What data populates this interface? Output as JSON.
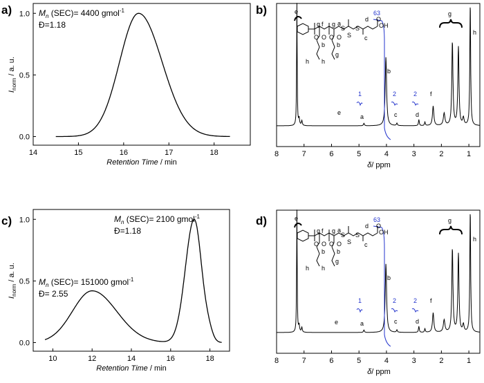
{
  "chart_data": [
    {
      "type": "line",
      "panel_label": "a)",
      "xlabel_italic": "Retention Time",
      "xlabel_unit": " / min",
      "ylabel": "I",
      "ylabel_sub": "norm",
      "ylabel_unit": " / a. u.",
      "xlim": [
        14,
        18.8
      ],
      "ylim": [
        -0.07,
        1.08
      ],
      "xticks": [
        "14",
        "15",
        "16",
        "17",
        "18"
      ],
      "yticks": [
        "0.0",
        "0.5",
        "1.0"
      ],
      "annotation": {
        "mn_sub": "n",
        "mn_text": " (SEC)= 4400 gmol",
        "mn_sup": "-1",
        "dispersity": "Đ=1.18"
      },
      "series": [
        {
          "name": "SEC trace a",
          "peaks": [
            {
              "center": 16.33,
              "height": 1.0,
              "sigma_left": 0.42,
              "sigma_right": 0.52
            }
          ],
          "x_start": 14.5,
          "x_end": 18.35
        }
      ]
    },
    {
      "type": "line",
      "panel_label": "b)",
      "xlabel_italic": "δ",
      "xlabel_unit": "/ ppm",
      "xlim": [
        8,
        0.6
      ],
      "xticks": [
        "8",
        "7",
        "6",
        "5",
        "4",
        "3",
        "2",
        "1"
      ],
      "peak_labels": [
        "e",
        "a",
        "b",
        "c",
        "d",
        "f",
        "g",
        "h"
      ],
      "integrals": [
        "1",
        "63",
        "2",
        "2"
      ],
      "structure_labels": [
        "e",
        "g",
        "f",
        "g",
        "a",
        "d",
        "c",
        "b",
        "b",
        "h",
        "h",
        "g",
        "OH",
        "O",
        "S",
        "S",
        "S",
        "O",
        "O",
        "O",
        "O"
      ]
    },
    {
      "type": "line",
      "panel_label": "c)",
      "xlabel_italic": "Retention Time",
      "xlabel_unit": " / min",
      "ylabel": "I",
      "ylabel_sub": "norm",
      "ylabel_unit": " / a. u.",
      "xlim": [
        9,
        19
      ],
      "ylim": [
        -0.07,
        1.08
      ],
      "xticks": [
        "10",
        "12",
        "14",
        "16",
        "18"
      ],
      "yticks": [
        "0.0",
        "0.5",
        "1.0"
      ],
      "annotation_high": {
        "mn_sub": "n",
        "mn_text": " (SEC)= 2100 gmol",
        "mn_sup": "-1",
        "dispersity": "Đ=1.18"
      },
      "annotation_low": {
        "mn_sub": "n",
        "mn_text": " (SEC)= 151000 gmol",
        "mn_sup": "-1",
        "dispersity": "Đ= 2.55"
      },
      "series": [
        {
          "name": "SEC trace c",
          "peaks": [
            {
              "center": 12.0,
              "height": 0.42,
              "sigma_left": 1.0,
              "sigma_right": 1.25
            },
            {
              "center": 17.2,
              "height": 1.0,
              "sigma_left": 0.45,
              "sigma_right": 0.38
            },
            {
              "center": 17.95,
              "height": 0.06,
              "sigma_left": 0.2,
              "sigma_right": 0.2
            }
          ],
          "x_start": 9.6,
          "x_end": 18.6
        }
      ]
    },
    {
      "type": "line",
      "panel_label": "d)",
      "xlabel_italic": "δ",
      "xlabel_unit": "/ ppm",
      "xlim": [
        8,
        0.6
      ],
      "xticks": [
        "8",
        "7",
        "6",
        "5",
        "4",
        "3",
        "2",
        "1"
      ],
      "peak_labels": [
        "e",
        "a",
        "b",
        "c",
        "d",
        "f",
        "g",
        "h"
      ],
      "integrals": [
        "1",
        "63",
        "2",
        "2"
      ],
      "structure_labels": [
        "e",
        "g",
        "f",
        "g",
        "a",
        "d",
        "c",
        "b",
        "b",
        "h",
        "h",
        "g",
        "OH",
        "O",
        "S",
        "S",
        "S",
        "O",
        "O",
        "O",
        "O"
      ]
    }
  ],
  "nmr_peaks": [
    {
      "ppm": 7.26,
      "h": 1.0,
      "w": 0.012
    },
    {
      "ppm": 7.18,
      "h": 0.055,
      "w": 0.02
    },
    {
      "ppm": 7.08,
      "h": 0.04,
      "w": 0.02
    },
    {
      "ppm": 4.82,
      "h": 0.02,
      "w": 0.02
    },
    {
      "ppm": 4.02,
      "h": 0.56,
      "w": 0.03
    },
    {
      "ppm": 3.62,
      "h": 0.02,
      "w": 0.02
    },
    {
      "ppm": 2.82,
      "h": 0.05,
      "w": 0.018
    },
    {
      "ppm": 2.6,
      "h": 0.03,
      "w": 0.018
    },
    {
      "ppm": 2.3,
      "h": 0.16,
      "w": 0.03
    },
    {
      "ppm": 1.9,
      "h": 0.1,
      "w": 0.035
    },
    {
      "ppm": 1.6,
      "h": 0.68,
      "w": 0.025
    },
    {
      "ppm": 1.38,
      "h": 0.64,
      "w": 0.025
    },
    {
      "ppm": 1.2,
      "h": 0.06,
      "w": 0.03
    },
    {
      "ppm": 0.95,
      "h": 1.0,
      "w": 0.018
    }
  ]
}
